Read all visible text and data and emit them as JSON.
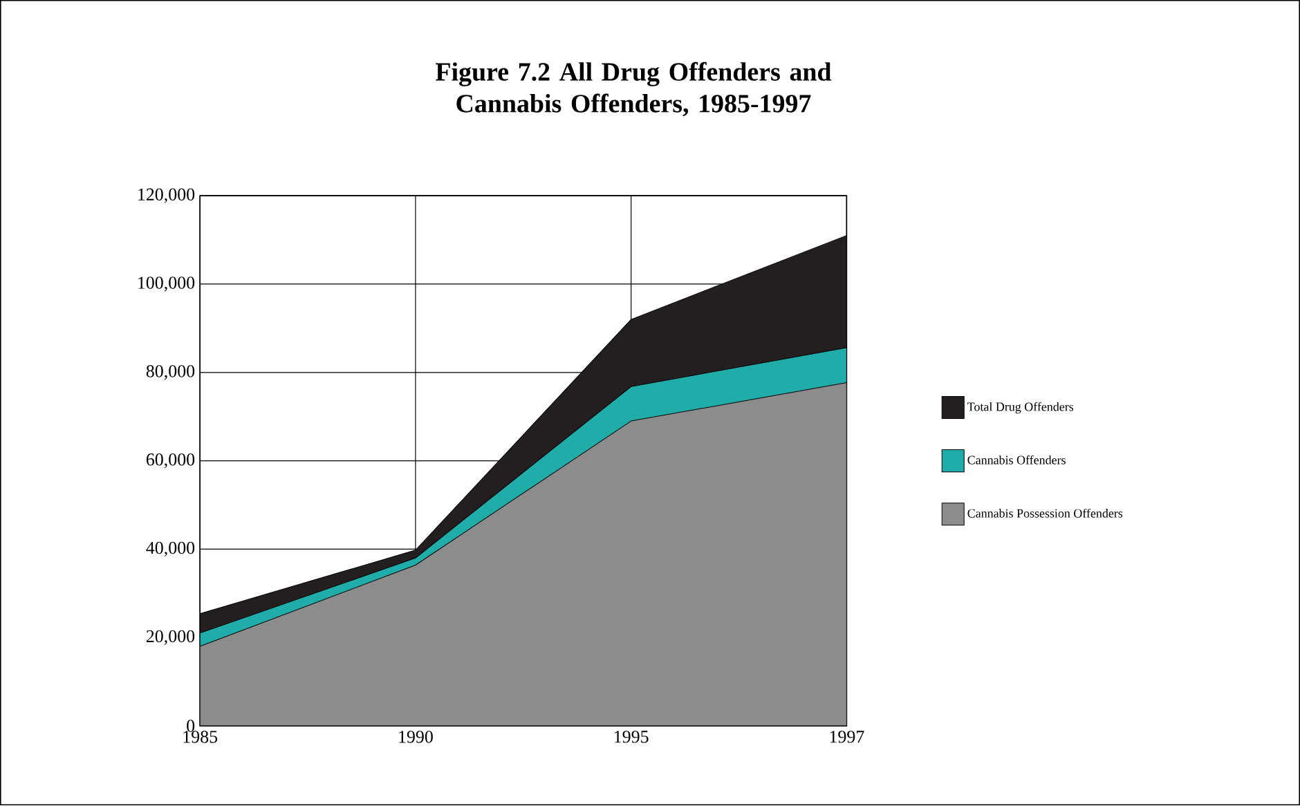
{
  "chart_data": {
    "type": "area",
    "title": "Figure 7.2 All Drug Offenders and Cannabis Offenders, 1985-1997",
    "categories": [
      "1985",
      "1990",
      "1995",
      "1997"
    ],
    "series": [
      {
        "name": "Total Drug Offenders",
        "color": "#231f20",
        "values": [
          25400,
          39800,
          92000,
          111000
        ]
      },
      {
        "name": "Cannabis Offenders",
        "color": "#20ada9",
        "values": [
          21000,
          38000,
          76800,
          85600
        ]
      },
      {
        "name": "Cannabis Possession Offenders",
        "color": "#8c8c8c",
        "values": [
          18000,
          36400,
          69000,
          77700
        ]
      }
    ],
    "ylim": [
      0,
      120000
    ],
    "yticks": [
      0,
      {
        "value": 20000,
        "label": "20,000"
      },
      {
        "value": 40000,
        "label": "40,000"
      },
      {
        "value": 60000,
        "label": "60,000"
      },
      {
        "value": 80000,
        "label": "80,000"
      },
      {
        "value": 100000,
        "label": "100,000"
      },
      {
        "value": 120000,
        "label": "120,000"
      }
    ],
    "grid": true,
    "legend": "right"
  }
}
